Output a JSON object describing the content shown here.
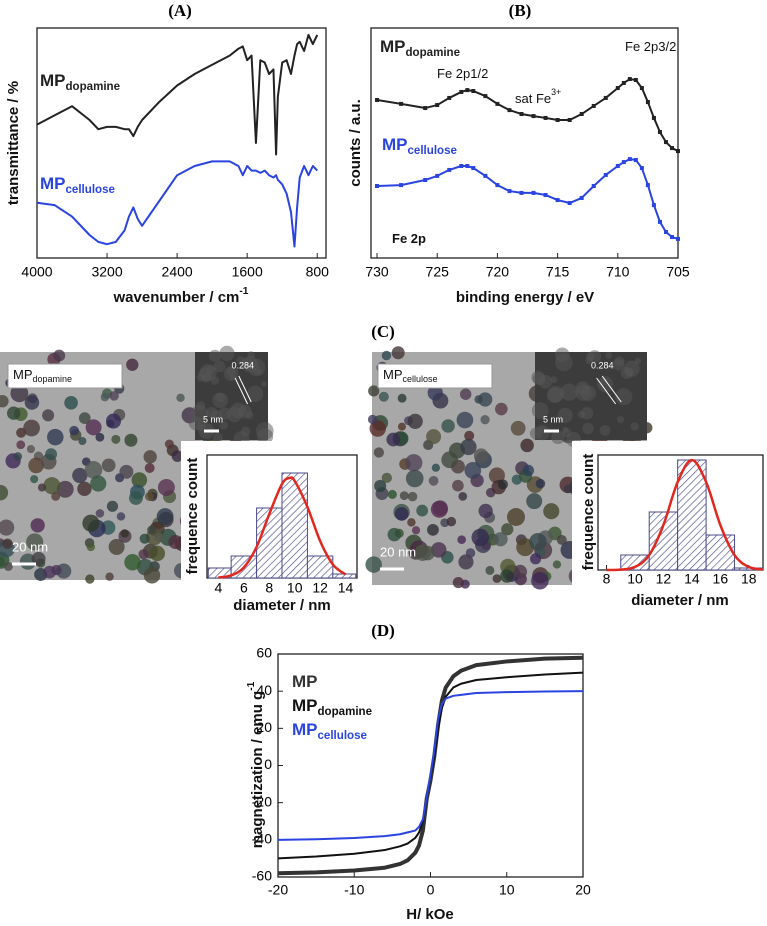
{
  "chart_data": [
    {
      "type": "line",
      "title": "(A)",
      "xlabel": "wavenumber / cm",
      "xlabel_sup": "-1",
      "ylabel": "transmittance / %",
      "x": [
        4000,
        3800,
        3600,
        3400,
        3300,
        3200,
        3100,
        3000,
        2950,
        2900,
        2850,
        2800,
        2600,
        2400,
        2200,
        2000,
        1800,
        1700,
        1650,
        1600,
        1550,
        1500,
        1450,
        1400,
        1350,
        1300,
        1270,
        1250,
        1200,
        1150,
        1100,
        1060,
        1030,
        1000,
        950,
        900,
        850,
        800
      ],
      "xlim": [
        4000,
        700
      ],
      "xticks": [
        4000,
        3200,
        2400,
        1600,
        800
      ],
      "ylim": [
        0,
        1
      ],
      "series": [
        {
          "name": "MP",
          "name_sub": "dopamine",
          "color": "#222222",
          "values": [
            0.58,
            0.62,
            0.66,
            0.6,
            0.56,
            0.57,
            0.57,
            0.56,
            0.56,
            0.53,
            0.57,
            0.6,
            0.68,
            0.75,
            0.8,
            0.84,
            0.88,
            0.91,
            0.92,
            0.86,
            0.88,
            0.5,
            0.86,
            0.85,
            0.8,
            0.82,
            0.45,
            0.7,
            0.85,
            0.86,
            0.8,
            0.88,
            0.93,
            0.94,
            0.9,
            0.97,
            0.93,
            0.97
          ]
        },
        {
          "name": "MP",
          "name_sub": "cellulose",
          "color": "#2a44e0",
          "values": [
            0.24,
            0.23,
            0.18,
            0.1,
            0.07,
            0.06,
            0.07,
            0.12,
            0.18,
            0.22,
            0.17,
            0.14,
            0.25,
            0.36,
            0.4,
            0.42,
            0.42,
            0.4,
            0.36,
            0.4,
            0.38,
            0.38,
            0.37,
            0.38,
            0.36,
            0.35,
            0.36,
            0.34,
            0.32,
            0.28,
            0.2,
            0.05,
            0.22,
            0.35,
            0.4,
            0.36,
            0.4,
            0.38
          ]
        }
      ]
    },
    {
      "type": "line",
      "markers": true,
      "title": "(B)",
      "xlabel": "binding energy / eV",
      "ylabel": "counts / a.u.",
      "x": [
        730,
        728,
        726,
        725,
        724,
        723,
        722.5,
        722,
        721,
        720,
        719,
        718,
        717,
        716,
        715,
        714,
        713,
        712,
        711,
        710,
        709.5,
        709,
        708.5,
        708,
        707.5,
        707,
        706.5,
        706,
        705.5,
        705
      ],
      "xlim": [
        730.5,
        705
      ],
      "xticks": [
        730,
        725,
        720,
        715,
        710,
        705
      ],
      "ylim": [
        0,
        1
      ],
      "series": [
        {
          "name": "MP",
          "name_sub": "dopamine",
          "color": "#222222",
          "values": [
            0.687,
            0.67,
            0.652,
            0.665,
            0.696,
            0.722,
            0.73,
            0.726,
            0.704,
            0.67,
            0.643,
            0.626,
            0.617,
            0.609,
            0.6,
            0.6,
            0.626,
            0.661,
            0.696,
            0.739,
            0.761,
            0.778,
            0.774,
            0.739,
            0.678,
            0.609,
            0.548,
            0.504,
            0.478,
            0.465
          ]
        },
        {
          "name": "MP",
          "name_sub": "cellulose",
          "color": "#2a44e0",
          "values": [
            0.313,
            0.317,
            0.339,
            0.357,
            0.383,
            0.4,
            0.4,
            0.391,
            0.357,
            0.317,
            0.291,
            0.283,
            0.283,
            0.274,
            0.252,
            0.239,
            0.261,
            0.313,
            0.361,
            0.4,
            0.417,
            0.43,
            0.426,
            0.391,
            0.317,
            0.23,
            0.157,
            0.113,
            0.091,
            0.083
          ]
        }
      ],
      "annotations": [
        {
          "text": "Fe 2p1/2"
        },
        {
          "text": "sat Fe",
          "sup": "3+"
        },
        {
          "text": "Fe 2p3/2"
        },
        {
          "text": "Fe 2p"
        }
      ]
    },
    {
      "type": "histogram",
      "title": "(C)",
      "xlabel": "diameter / nm",
      "ylabel": "frequence count",
      "bins": [
        3.2,
        5,
        7,
        9,
        11,
        13,
        14.8
      ],
      "values": [
        10,
        22,
        70,
        105,
        22,
        4
      ],
      "color": "#4a4a8a",
      "xlim": [
        3.1,
        14.9
      ],
      "xticks": [
        4,
        6,
        8,
        10,
        12,
        14
      ],
      "ylim": [
        0,
        123
      ],
      "fit": {
        "color": "#e0281e",
        "x": [
          4,
          5,
          6,
          7,
          8,
          9,
          9.6,
          10,
          11,
          12,
          13,
          14
        ],
        "values": [
          0.44,
          2.6,
          10.6,
          31,
          64,
          94,
          100,
          97,
          71,
          37,
          13.5,
          3.5
        ]
      },
      "image": {
        "sample": "MP",
        "sample_sub": "dopamine",
        "lattice": "0.284",
        "inset_scale": "5 nm",
        "scale": "20 nm"
      }
    },
    {
      "type": "histogram",
      "xlabel": "diameter / nm",
      "ylabel": "frequence count",
      "bins": [
        9,
        11,
        13,
        15,
        17,
        19
      ],
      "values": [
        15,
        58,
        110,
        35,
        2
      ],
      "color": "#4a4a8a",
      "xlim": [
        7.4,
        19
      ],
      "xticks": [
        8,
        10,
        12,
        14,
        16,
        18
      ],
      "ylim": [
        0,
        115
      ],
      "fit": {
        "color": "#e0281e",
        "x": [
          8,
          9,
          10,
          11,
          12,
          13,
          14,
          15,
          16,
          17,
          18,
          19
        ],
        "values": [
          0.04,
          0.4,
          3.1,
          14.9,
          45,
          88,
          110,
          88,
          45,
          14.9,
          3.1,
          0.4
        ]
      },
      "image": {
        "sample": "MP",
        "sample_sub": "cellulose",
        "lattice": "0.284",
        "inset_scale": "5 nm",
        "scale": "20 nm"
      }
    },
    {
      "type": "line",
      "title": "(D)",
      "xlabel": "H/ kOe",
      "ylabel": "magnetization / emu g",
      "ylabel_sup": "-1",
      "x": [
        -20,
        -15,
        -10,
        -6,
        -4,
        -3,
        -2,
        -1.5,
        -1,
        -0.5,
        0,
        0.5,
        1,
        1.5,
        2,
        3,
        4,
        6,
        10,
        15,
        20
      ],
      "xlim": [
        -20,
        20
      ],
      "xticks": [
        -20,
        -10,
        0,
        10,
        20
      ],
      "ylim": [
        -60,
        60
      ],
      "yticks": [
        -60,
        -40,
        -20,
        0,
        20,
        40,
        60
      ],
      "series": [
        {
          "name": "MP",
          "color": "#333333",
          "width": 4,
          "values": [
            -58,
            -57.5,
            -56.5,
            -55,
            -53,
            -51,
            -47,
            -43,
            -35,
            -18,
            -8,
            5,
            22,
            35,
            42,
            48,
            51,
            54,
            56,
            57.5,
            58
          ]
        },
        {
          "name": "MP",
          "name_sub": "dopamine",
          "color": "#111111",
          "width": 2,
          "values": [
            -50,
            -49,
            -47.5,
            -45.5,
            -43.5,
            -42,
            -39,
            -36,
            -30,
            -17,
            -6,
            5,
            20,
            31,
            37,
            42,
            44,
            46,
            47.5,
            49,
            50
          ]
        },
        {
          "name": "MP",
          "name_sub": "cellulose",
          "color": "#2a44e0",
          "width": 2,
          "values": [
            -40,
            -39.7,
            -39,
            -38,
            -37,
            -36,
            -35,
            -33,
            -29,
            -17,
            -5,
            8,
            25,
            33,
            36,
            37.5,
            38,
            39,
            39.5,
            39.8,
            40
          ]
        }
      ]
    }
  ]
}
